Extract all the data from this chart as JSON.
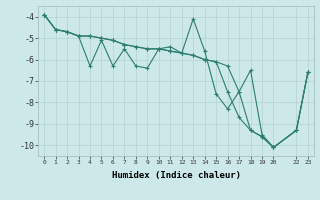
{
  "xlabel": "Humidex (Indice chaleur)",
  "background_color": "#cce8e8",
  "grid_color": "#b8d4d4",
  "line_color": "#2d7d6e",
  "xlim": [
    -0.5,
    23.5
  ],
  "ylim": [
    -10.5,
    -3.5
  ],
  "yticks": [
    -10,
    -9,
    -8,
    -7,
    -6,
    -5,
    -4
  ],
  "xtick_positions": [
    0,
    1,
    2,
    3,
    4,
    5,
    6,
    7,
    8,
    9,
    10,
    11,
    12,
    13,
    14,
    15,
    16,
    17,
    18,
    19,
    20,
    22,
    23
  ],
  "xtick_labels": [
    "0",
    "1",
    "2",
    "3",
    "4",
    "5",
    "6",
    "7",
    "8",
    "9",
    "10",
    "11",
    "12",
    "13",
    "14",
    "15",
    "16",
    "17",
    "18",
    "19",
    "20",
    "22",
    "23"
  ],
  "line1_x": [
    0,
    1,
    2,
    3,
    4,
    5,
    6,
    7,
    8,
    9,
    10,
    11,
    12,
    13,
    14,
    15,
    16,
    17,
    18,
    19,
    20,
    22,
    23
  ],
  "line1_y": [
    -3.9,
    -4.6,
    -4.7,
    -4.9,
    -6.3,
    -5.1,
    -6.3,
    -5.5,
    -6.3,
    -6.4,
    -5.5,
    -5.4,
    -5.7,
    -4.1,
    -5.6,
    -7.6,
    -8.3,
    -7.5,
    -6.5,
    -9.5,
    -10.1,
    -9.3,
    -6.6
  ],
  "line2_x": [
    0,
    1,
    2,
    3,
    4,
    5,
    6,
    7,
    8,
    9,
    10,
    11,
    12,
    13,
    14,
    15,
    16,
    17,
    18,
    19,
    20,
    22,
    23
  ],
  "line2_y": [
    -3.9,
    -4.6,
    -4.7,
    -4.9,
    -4.9,
    -5.0,
    -5.1,
    -5.3,
    -5.4,
    -5.5,
    -5.5,
    -5.6,
    -5.7,
    -5.8,
    -6.0,
    -6.1,
    -6.3,
    -7.5,
    -9.3,
    -9.6,
    -10.1,
    -9.3,
    -6.6
  ],
  "line3_x": [
    0,
    1,
    2,
    3,
    4,
    5,
    6,
    7,
    8,
    9,
    10,
    11,
    12,
    13,
    14,
    15,
    16,
    17,
    18,
    19,
    20,
    22,
    23
  ],
  "line3_y": [
    -3.9,
    -4.6,
    -4.7,
    -4.9,
    -4.9,
    -5.0,
    -5.1,
    -5.3,
    -5.4,
    -5.5,
    -5.5,
    -5.6,
    -5.7,
    -5.8,
    -6.0,
    -6.1,
    -7.5,
    -8.7,
    -9.3,
    -9.6,
    -10.1,
    -9.3,
    -6.6
  ]
}
